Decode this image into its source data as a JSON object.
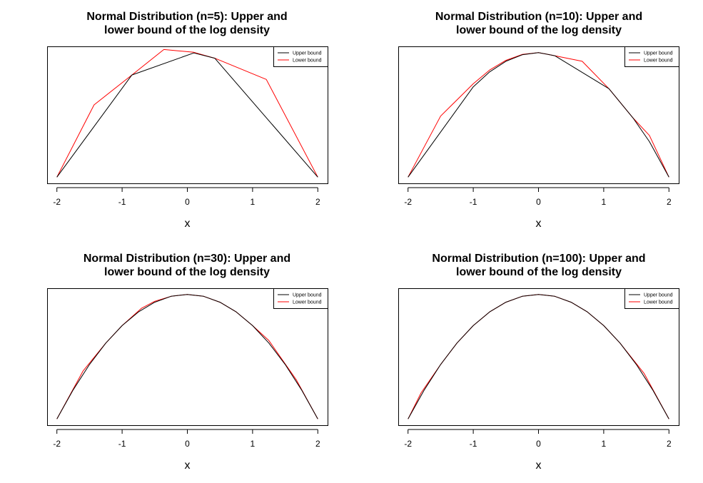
{
  "colors": {
    "upper": "#000000",
    "lower": "#ff0000",
    "box": "#000000"
  },
  "chart_data": [
    {
      "type": "line",
      "title": "Normal Distribution (n=5): Upper and\nlower bound of the log density",
      "xlabel": "x",
      "ylabel": "",
      "xlim": [
        -2.15,
        2.15
      ],
      "xticks": [
        -2,
        -1,
        0,
        1,
        2
      ],
      "ylim": [
        -2.1,
        0.1
      ],
      "legend_position": "top-right",
      "series": [
        {
          "name": "Upper bound",
          "color": "#000000",
          "x": [
            -2,
            -0.85,
            0.1,
            0.42,
            2
          ],
          "y": [
            -2.0,
            -0.36,
            -0.005,
            -0.09,
            -2.0
          ]
        },
        {
          "name": "Lower bound",
          "color": "#ff0000",
          "x": [
            -2,
            -1.43,
            -0.85,
            -0.36,
            0.1,
            0.42,
            1.21,
            2
          ],
          "y": [
            -2.0,
            -0.84,
            -0.36,
            0.05,
            0.005,
            -0.09,
            -0.43,
            -2.0
          ]
        }
      ]
    },
    {
      "type": "line",
      "title": "Normal Distribution (n=10): Upper and\nlower bound of the log density",
      "xlabel": "x",
      "ylabel": "",
      "xlim": [
        -2.15,
        2.15
      ],
      "xticks": [
        -2,
        -1,
        0,
        1,
        2
      ],
      "ylim": [
        -2.1,
        0.1
      ],
      "legend_position": "top-right",
      "series": [
        {
          "name": "Upper bound",
          "color": "#000000",
          "x": [
            -2,
            -1.0,
            -0.75,
            -0.5,
            -0.25,
            0,
            0.25,
            1.08,
            1.45,
            1.7,
            2
          ],
          "y": [
            -2.0,
            -0.55,
            -0.31,
            -0.14,
            -0.035,
            0.0,
            -0.05,
            -0.58,
            -1.05,
            -1.43,
            -2.0
          ]
        },
        {
          "name": "Lower bound",
          "color": "#ff0000",
          "x": [
            -2,
            -1.5,
            -1.0,
            -0.75,
            -0.5,
            -0.25,
            0,
            0.25,
            0.67,
            1.08,
            1.45,
            1.7,
            2
          ],
          "y": [
            -2.0,
            -1.02,
            -0.5,
            -0.28,
            -0.125,
            -0.03,
            0.0,
            -0.05,
            -0.14,
            -0.58,
            -1.05,
            -1.33,
            -2.0
          ]
        }
      ]
    },
    {
      "type": "line",
      "title": "Normal Distribution (n=30): Upper and\nlower bound of the log density",
      "xlabel": "x",
      "ylabel": "",
      "xlim": [
        -2.15,
        2.15
      ],
      "xticks": [
        -2,
        -1,
        0,
        1,
        2
      ],
      "ylim": [
        -2.1,
        0.1
      ],
      "legend_position": "top-right",
      "series": [
        {
          "name": "Upper bound",
          "color": "#000000",
          "x": [
            -2,
            -1.75,
            -1.5,
            -1.25,
            -1.0,
            -0.75,
            -0.5,
            -0.25,
            0,
            0.25,
            0.5,
            0.75,
            1.0,
            1.25,
            1.5,
            1.75,
            2
          ],
          "y": [
            -2.0,
            -1.53,
            -1.125,
            -0.78,
            -0.5,
            -0.28,
            -0.125,
            -0.03,
            0.0,
            -0.03,
            -0.125,
            -0.28,
            -0.5,
            -0.78,
            -1.125,
            -1.53,
            -2.0
          ]
        },
        {
          "name": "Lower bound",
          "color": "#ff0000",
          "x": [
            -2,
            -1.6,
            -1.25,
            -1.0,
            -0.7,
            -0.5,
            -0.25,
            0,
            0.25,
            0.5,
            0.75,
            1.0,
            1.25,
            1.67,
            2
          ],
          "y": [
            -2.0,
            -1.23,
            -0.78,
            -0.5,
            -0.22,
            -0.11,
            -0.03,
            0.0,
            -0.03,
            -0.125,
            -0.28,
            -0.5,
            -0.74,
            -1.37,
            -2.0
          ]
        }
      ]
    },
    {
      "type": "line",
      "title": "Normal Distribution (n=100): Upper and\nlower bound of the log density",
      "xlabel": "x",
      "ylabel": "",
      "xlim": [
        -2.15,
        2.15
      ],
      "xticks": [
        -2,
        -1,
        0,
        1,
        2
      ],
      "ylim": [
        -2.1,
        0.1
      ],
      "legend_position": "top-right",
      "series": [
        {
          "name": "Upper bound",
          "color": "#000000",
          "x": [
            -2,
            -1.75,
            -1.5,
            -1.25,
            -1.0,
            -0.75,
            -0.5,
            -0.25,
            0,
            0.25,
            0.5,
            0.75,
            1.0,
            1.25,
            1.5,
            1.75,
            2
          ],
          "y": [
            -2.0,
            -1.53,
            -1.125,
            -0.78,
            -0.5,
            -0.28,
            -0.125,
            -0.03,
            0.0,
            -0.03,
            -0.125,
            -0.28,
            -0.5,
            -0.78,
            -1.125,
            -1.53,
            -2.0
          ]
        },
        {
          "name": "Lower bound",
          "color": "#ff0000",
          "x": [
            -2,
            -1.8,
            -1.5,
            -1.25,
            -1.0,
            -0.75,
            -0.5,
            -0.25,
            0,
            0.25,
            0.5,
            0.75,
            1.0,
            1.25,
            1.62,
            2
          ],
          "y": [
            -2.0,
            -1.58,
            -1.125,
            -0.78,
            -0.5,
            -0.28,
            -0.125,
            -0.03,
            0.0,
            -0.03,
            -0.125,
            -0.28,
            -0.5,
            -0.78,
            -1.27,
            -2.0
          ]
        }
      ]
    }
  ]
}
